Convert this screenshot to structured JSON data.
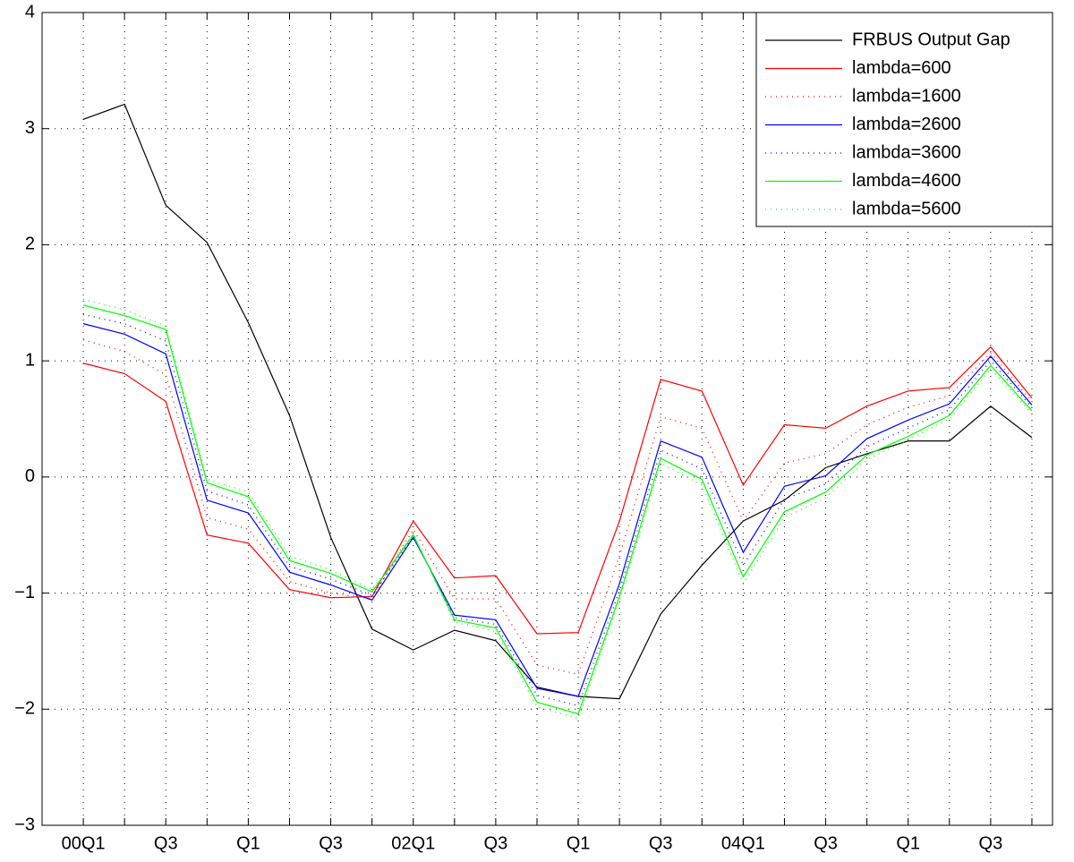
{
  "chart_data": {
    "type": "line",
    "categories": [
      "00Q1",
      null,
      "Q3",
      null,
      "Q1",
      null,
      "Q3",
      null,
      "02Q1",
      null,
      "Q3",
      null,
      "Q1",
      null,
      "Q3",
      null,
      "04Q1",
      null,
      "Q3",
      null,
      "Q1",
      null,
      "Q3",
      null
    ],
    "series": [
      {
        "name": "FRBUS Output Gap",
        "color": "#000000",
        "dash": "solid",
        "values": [
          3.08,
          3.21,
          2.34,
          2.02,
          1.33,
          0.53,
          -0.52,
          -1.31,
          -1.49,
          -1.32,
          -1.41,
          -1.81,
          -1.89,
          -1.91,
          -1.18,
          -0.76,
          -0.38,
          -0.2,
          0.08,
          0.2,
          0.31,
          0.31,
          0.61,
          0.34
        ]
      },
      {
        "name": "lambda=600",
        "color": "#ff0000",
        "dash": "solid",
        "values": [
          0.98,
          0.89,
          0.65,
          -0.5,
          -0.57,
          -0.97,
          -1.04,
          -1.03,
          -0.38,
          -0.87,
          -0.85,
          -1.35,
          -1.34,
          -0.38,
          0.84,
          0.74,
          -0.07,
          0.45,
          0.42,
          0.61,
          0.74,
          0.77,
          1.12,
          0.68
        ]
      },
      {
        "name": "lambda=1600",
        "color": "#ff0000",
        "dash": "dotted",
        "values": [
          1.18,
          1.08,
          0.88,
          -0.35,
          -0.45,
          -0.9,
          -1.0,
          -1.05,
          -0.45,
          -1.05,
          -1.05,
          -1.62,
          -1.7,
          -0.68,
          0.52,
          0.42,
          -0.38,
          0.12,
          0.2,
          0.45,
          0.6,
          0.7,
          1.07,
          0.65
        ]
      },
      {
        "name": "lambda=2600",
        "color": "#0000ff",
        "dash": "solid",
        "values": [
          1.32,
          1.23,
          1.06,
          -0.2,
          -0.31,
          -0.82,
          -0.93,
          -1.06,
          -0.52,
          -1.19,
          -1.23,
          -1.82,
          -1.89,
          -0.92,
          0.31,
          0.17,
          -0.65,
          -0.08,
          0.01,
          0.33,
          0.49,
          0.63,
          1.04,
          0.62
        ]
      },
      {
        "name": "lambda=3600",
        "color": "#0000ff",
        "dash": "dotted",
        "values": [
          1.4,
          1.32,
          1.17,
          -0.12,
          -0.24,
          -0.77,
          -0.88,
          -1.02,
          -0.51,
          -1.21,
          -1.27,
          -1.88,
          -1.97,
          -0.98,
          0.23,
          0.07,
          -0.76,
          -0.19,
          -0.06,
          0.26,
          0.42,
          0.58,
          1.0,
          0.6
        ]
      },
      {
        "name": "lambda=4600",
        "color": "#00ff00",
        "dash": "solid",
        "values": [
          1.48,
          1.39,
          1.27,
          -0.05,
          -0.17,
          -0.72,
          -0.83,
          -0.99,
          -0.5,
          -1.23,
          -1.3,
          -1.94,
          -2.04,
          -1.03,
          0.16,
          -0.02,
          -0.86,
          -0.3,
          -0.13,
          0.19,
          0.35,
          0.53,
          0.96,
          0.57
        ]
      },
      {
        "name": "lambda=5600",
        "color": "#00ff00",
        "dash": "dotted",
        "values": [
          1.53,
          1.44,
          1.3,
          -0.02,
          -0.13,
          -0.68,
          -0.8,
          -0.97,
          -0.49,
          -1.25,
          -1.33,
          -1.98,
          -2.08,
          -1.06,
          0.12,
          -0.07,
          -0.92,
          -0.35,
          -0.18,
          0.15,
          0.32,
          0.5,
          0.93,
          0.55
        ]
      }
    ],
    "ylim": [
      -3,
      4
    ],
    "yticks": [
      {
        "value": -3,
        "label": "−3"
      },
      {
        "value": -2,
        "label": "−2"
      },
      {
        "value": -1,
        "label": "−1"
      },
      0,
      1,
      2,
      3,
      4
    ],
    "grid": true,
    "legend": "top-right"
  }
}
